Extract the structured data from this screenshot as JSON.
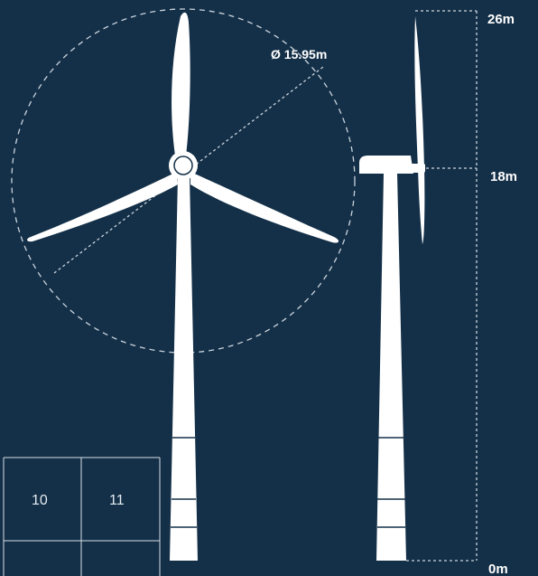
{
  "diagram": {
    "rotor_diameter_label": "Ø 15.95m",
    "height_labels": [
      "26m",
      "18m",
      "0m"
    ],
    "grid_cells": [
      "10",
      "11"
    ]
  },
  "colors": {
    "background": "#143048",
    "turbine": "#ffffff",
    "dashed_guides": "#c9d3dc"
  }
}
